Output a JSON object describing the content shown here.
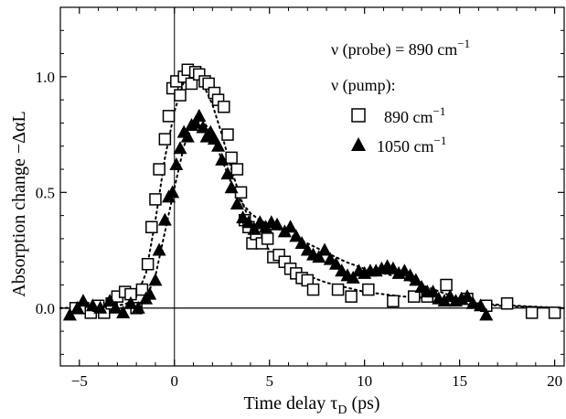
{
  "chart_data": {
    "type": "scatter",
    "xlabel": "Time delay τ",
    "xlabel_sub": "D",
    "xlabel_unit": "(ps)",
    "ylabel": "Absorption change  −ΔαL",
    "xlim": [
      -6,
      20.5
    ],
    "ylim": [
      -0.25,
      1.3
    ],
    "xticks": [
      -5,
      0,
      5,
      10,
      15,
      20
    ],
    "xtick_labels": [
      "−5",
      "0",
      "5",
      "10",
      "15",
      "20"
    ],
    "yticks": [
      0.0,
      0.5,
      1.0
    ],
    "ytick_labels": [
      "0.0",
      "0.5",
      "1.0"
    ],
    "grid": false,
    "legend_position": "top-right",
    "legend": {
      "line1": "ν (probe) = 890 cm",
      "line1_sup": "−1",
      "line2": "ν (pump):",
      "entry1": "890 cm",
      "entry1_sup": "−1",
      "entry2": "1050 cm",
      "entry2_sup": "−1"
    },
    "series": [
      {
        "marker": "open-square",
        "points": [
          [
            -5.2,
            0.0
          ],
          [
            -4.8,
            0.0
          ],
          [
            -4.4,
            -0.02
          ],
          [
            -4.0,
            0.01
          ],
          [
            -3.7,
            -0.02
          ],
          [
            -3.3,
            0.02
          ],
          [
            -3.0,
            0.05
          ],
          [
            -2.6,
            0.07
          ],
          [
            -2.3,
            0.06
          ],
          [
            -2.0,
            0.0
          ],
          [
            -1.7,
            0.08
          ],
          [
            -1.4,
            0.19
          ],
          [
            -1.2,
            0.35
          ],
          [
            -1.0,
            0.47
          ],
          [
            -0.8,
            0.6
          ],
          [
            -0.5,
            0.73
          ],
          [
            -0.3,
            0.83
          ],
          [
            -0.1,
            0.95
          ],
          [
            0.1,
            0.98
          ],
          [
            0.3,
            0.92
          ],
          [
            0.5,
            1.0
          ],
          [
            0.7,
            1.03
          ],
          [
            0.9,
            0.97
          ],
          [
            1.1,
            1.02
          ],
          [
            1.3,
            1.01
          ],
          [
            1.6,
            0.98
          ],
          [
            1.8,
            0.97
          ],
          [
            2.1,
            0.93
          ],
          [
            2.3,
            0.9
          ],
          [
            2.6,
            0.87
          ],
          [
            2.8,
            0.75
          ],
          [
            3.0,
            0.65
          ],
          [
            3.3,
            0.6
          ],
          [
            3.5,
            0.5
          ],
          [
            3.7,
            0.38
          ],
          [
            3.9,
            0.35
          ],
          [
            4.1,
            0.28
          ],
          [
            4.3,
            0.32
          ],
          [
            4.6,
            0.28
          ],
          [
            4.9,
            0.3
          ],
          [
            5.2,
            0.22
          ],
          [
            5.5,
            0.23
          ],
          [
            5.8,
            0.2
          ],
          [
            6.1,
            0.17
          ],
          [
            6.4,
            0.15
          ],
          [
            6.7,
            0.13
          ],
          [
            7.0,
            0.12
          ],
          [
            7.3,
            0.08
          ],
          [
            8.6,
            0.08
          ],
          [
            9.3,
            0.05
          ],
          [
            10.2,
            0.08
          ],
          [
            11.5,
            0.03
          ],
          [
            12.6,
            0.05
          ],
          [
            13.3,
            0.05
          ],
          [
            14.3,
            0.1
          ],
          [
            15.4,
            0.04
          ],
          [
            16.4,
            0.01
          ],
          [
            17.5,
            0.02
          ],
          [
            18.8,
            -0.02
          ],
          [
            20.0,
            -0.02
          ]
        ]
      },
      {
        "marker": "filled-triangle",
        "points": [
          [
            -5.5,
            -0.03
          ],
          [
            -5.1,
            0.0
          ],
          [
            -4.8,
            0.03
          ],
          [
            -4.3,
            0.01
          ],
          [
            -3.9,
            0.0
          ],
          [
            -3.4,
            0.03
          ],
          [
            -3.1,
            0.0
          ],
          [
            -2.7,
            -0.02
          ],
          [
            -2.3,
            0.02
          ],
          [
            -1.9,
            0.0
          ],
          [
            -1.5,
            0.04
          ],
          [
            -1.3,
            0.06
          ],
          [
            -1.0,
            0.12
          ],
          [
            -0.8,
            0.25
          ],
          [
            -0.5,
            0.38
          ],
          [
            -0.3,
            0.48
          ],
          [
            -0.1,
            0.5
          ],
          [
            0.1,
            0.62
          ],
          [
            0.3,
            0.69
          ],
          [
            0.5,
            0.76
          ],
          [
            0.7,
            0.74
          ],
          [
            0.9,
            0.79
          ],
          [
            1.1,
            0.8
          ],
          [
            1.3,
            0.83
          ],
          [
            1.5,
            0.78
          ],
          [
            1.7,
            0.74
          ],
          [
            1.9,
            0.76
          ],
          [
            2.1,
            0.73
          ],
          [
            2.3,
            0.7
          ],
          [
            2.5,
            0.64
          ],
          [
            2.8,
            0.58
          ],
          [
            3.0,
            0.52
          ],
          [
            3.3,
            0.45
          ],
          [
            3.6,
            0.39
          ],
          [
            3.9,
            0.37
          ],
          [
            4.2,
            0.34
          ],
          [
            4.5,
            0.37
          ],
          [
            4.8,
            0.35
          ],
          [
            5.1,
            0.37
          ],
          [
            5.4,
            0.36
          ],
          [
            5.8,
            0.33
          ],
          [
            6.1,
            0.35
          ],
          [
            6.4,
            0.31
          ],
          [
            6.7,
            0.28
          ],
          [
            7.0,
            0.25
          ],
          [
            7.3,
            0.23
          ],
          [
            7.6,
            0.22
          ],
          [
            7.9,
            0.25
          ],
          [
            8.2,
            0.21
          ],
          [
            8.5,
            0.19
          ],
          [
            8.8,
            0.16
          ],
          [
            9.1,
            0.14
          ],
          [
            9.4,
            0.13
          ],
          [
            9.7,
            0.16
          ],
          [
            10.0,
            0.15
          ],
          [
            10.3,
            0.16
          ],
          [
            10.6,
            0.16
          ],
          [
            10.9,
            0.17
          ],
          [
            11.2,
            0.18
          ],
          [
            11.5,
            0.17
          ],
          [
            11.8,
            0.15
          ],
          [
            12.1,
            0.16
          ],
          [
            12.4,
            0.14
          ],
          [
            12.7,
            0.12
          ],
          [
            13.0,
            0.09
          ],
          [
            13.3,
            0.07
          ],
          [
            13.6,
            0.07
          ],
          [
            13.9,
            0.04
          ],
          [
            14.2,
            0.03
          ],
          [
            14.5,
            0.05
          ],
          [
            14.8,
            0.03
          ],
          [
            15.1,
            0.04
          ],
          [
            15.4,
            0.05
          ],
          [
            15.7,
            0.02
          ],
          [
            16.1,
            0.01
          ],
          [
            16.4,
            -0.03
          ]
        ]
      }
    ],
    "fit_curves": [
      {
        "style": "dotted",
        "points": [
          [
            -6.0,
            0.0
          ],
          [
            -3.0,
            0.01
          ],
          [
            -2.5,
            0.02
          ],
          [
            -2.0,
            0.05
          ],
          [
            -1.5,
            0.15
          ],
          [
            -1.0,
            0.38
          ],
          [
            -0.5,
            0.65
          ],
          [
            0.0,
            0.85
          ],
          [
            0.5,
            0.98
          ],
          [
            1.0,
            1.0
          ],
          [
            1.5,
            0.97
          ],
          [
            2.0,
            0.88
          ],
          [
            2.5,
            0.75
          ],
          [
            3.0,
            0.6
          ],
          [
            3.5,
            0.47
          ],
          [
            4.0,
            0.37
          ],
          [
            4.5,
            0.3
          ],
          [
            5.0,
            0.25
          ],
          [
            5.5,
            0.21
          ],
          [
            6.0,
            0.18
          ],
          [
            7.0,
            0.14
          ],
          [
            8.0,
            0.11
          ],
          [
            9.0,
            0.09
          ],
          [
            10.0,
            0.07
          ],
          [
            12.0,
            0.05
          ],
          [
            14.0,
            0.04
          ],
          [
            16.0,
            0.02
          ],
          [
            18.0,
            0.01
          ],
          [
            20.5,
            0.0
          ]
        ]
      },
      {
        "style": "dotted",
        "points": [
          [
            -6.0,
            0.0
          ],
          [
            -2.5,
            0.0
          ],
          [
            -2.0,
            0.01
          ],
          [
            -1.5,
            0.04
          ],
          [
            -1.0,
            0.14
          ],
          [
            -0.5,
            0.33
          ],
          [
            0.0,
            0.52
          ],
          [
            0.5,
            0.7
          ],
          [
            1.0,
            0.8
          ],
          [
            1.5,
            0.81
          ],
          [
            2.0,
            0.75
          ],
          [
            2.5,
            0.64
          ],
          [
            3.0,
            0.54
          ],
          [
            3.5,
            0.46
          ],
          [
            4.0,
            0.41
          ],
          [
            4.5,
            0.38
          ],
          [
            5.0,
            0.36
          ],
          [
            5.5,
            0.34
          ],
          [
            6.0,
            0.32
          ],
          [
            7.0,
            0.28
          ],
          [
            8.0,
            0.24
          ],
          [
            9.0,
            0.2
          ],
          [
            10.0,
            0.17
          ],
          [
            11.0,
            0.15
          ],
          [
            12.0,
            0.13
          ],
          [
            13.0,
            0.1
          ],
          [
            14.0,
            0.07
          ],
          [
            15.0,
            0.04
          ],
          [
            16.0,
            0.02
          ],
          [
            17.0,
            0.01
          ],
          [
            20.5,
            0.0
          ]
        ]
      }
    ]
  }
}
